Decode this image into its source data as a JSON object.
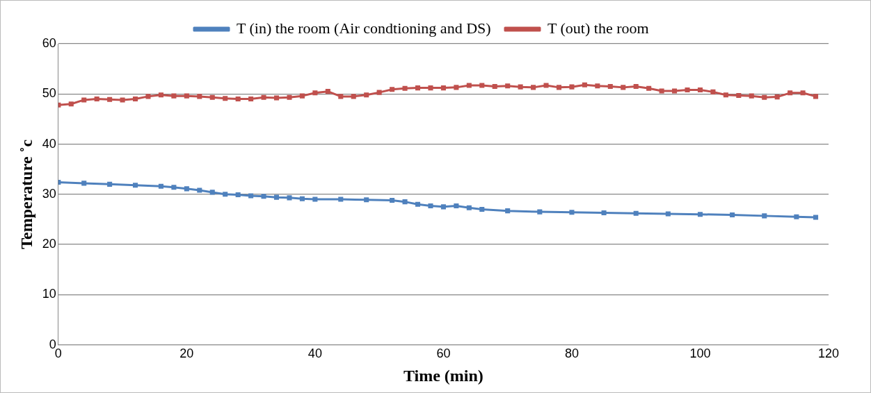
{
  "chart_data": {
    "type": "line",
    "xlabel": "Time (min)",
    "ylabel": "Temperature ˚c",
    "xlim": [
      0,
      120
    ],
    "xticks": [
      0,
      20,
      40,
      60,
      80,
      100,
      120
    ],
    "ylim": [
      0,
      60
    ],
    "yticks": [
      0,
      10,
      20,
      30,
      40,
      50,
      60
    ],
    "grid": "y",
    "legend": "top",
    "marker": "square",
    "line_style": "solid",
    "series": [
      {
        "name": "T (in) the room (Air condtioning and DS)",
        "color": "#4f81bd",
        "x": [
          0,
          4,
          8,
          12,
          16,
          18,
          20,
          22,
          24,
          26,
          28,
          30,
          32,
          34,
          36,
          38,
          40,
          44,
          48,
          52,
          54,
          56,
          58,
          60,
          62,
          64,
          66,
          70,
          75,
          80,
          85,
          90,
          95,
          100,
          105,
          110,
          115,
          118
        ],
        "values": [
          32.4,
          32.2,
          32,
          31.8,
          31.6,
          31.4,
          31.1,
          30.8,
          30.4,
          30,
          29.9,
          29.7,
          29.6,
          29.4,
          29.3,
          29.1,
          29,
          29,
          28.9,
          28.8,
          28.5,
          28,
          27.7,
          27.5,
          27.7,
          27.3,
          27,
          26.7,
          26.5,
          26.4,
          26.3,
          26.2,
          26.1,
          26,
          25.9,
          25.7,
          25.5,
          25.4
        ]
      },
      {
        "name": "T (out) the room",
        "color": "#c0504d",
        "x": [
          0,
          2,
          4,
          6,
          8,
          10,
          12,
          14,
          16,
          18,
          20,
          22,
          24,
          26,
          28,
          30,
          32,
          34,
          36,
          38,
          40,
          42,
          44,
          46,
          48,
          50,
          52,
          54,
          56,
          58,
          60,
          62,
          64,
          66,
          68,
          70,
          72,
          74,
          76,
          78,
          80,
          82,
          84,
          86,
          88,
          90,
          92,
          94,
          96,
          98,
          100,
          102,
          104,
          106,
          108,
          110,
          112,
          114,
          116,
          118
        ],
        "values": [
          47.8,
          48,
          48.8,
          49,
          48.9,
          48.8,
          49,
          49.5,
          49.8,
          49.6,
          49.6,
          49.5,
          49.3,
          49.1,
          49,
          49,
          49.3,
          49.2,
          49.3,
          49.6,
          50.2,
          50.5,
          49.5,
          49.5,
          49.8,
          50.3,
          50.9,
          51.1,
          51.2,
          51.2,
          51.2,
          51.3,
          51.7,
          51.7,
          51.5,
          51.6,
          51.4,
          51.3,
          51.7,
          51.3,
          51.4,
          51.8,
          51.6,
          51.5,
          51.3,
          51.5,
          51.1,
          50.6,
          50.6,
          50.8,
          50.8,
          50.4,
          49.8,
          49.7,
          49.6,
          49.3,
          49.4,
          50.2,
          50.2,
          49.5
        ]
      }
    ]
  }
}
